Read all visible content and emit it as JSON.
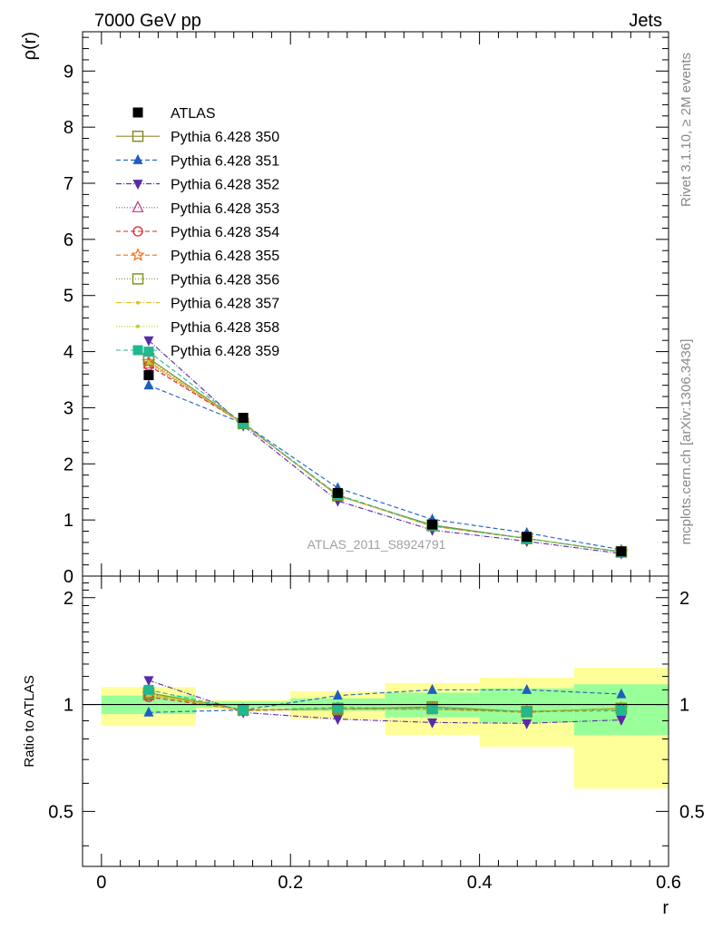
{
  "header": {
    "left": "7000 GeV pp",
    "right": "Jets"
  },
  "side_labels": {
    "rivet": "Rivet 3.1.10, ≥ 2M events",
    "mcplots": "mcplots.cern.ch [arXiv:1306.3436]"
  },
  "watermark": "ATLAS_2011_S8924791",
  "chart_data": [
    {
      "type": "line",
      "panel": "main",
      "ylabel": "ρ(r)",
      "xlabel": "r",
      "xlim": [
        -0.02,
        0.6
      ],
      "ylim": [
        0,
        9.7
      ],
      "x": [
        0.05,
        0.15,
        0.25,
        0.35,
        0.45,
        0.55
      ],
      "x_ticks": [
        "0",
        "0.2",
        "0.4",
        "0.6"
      ],
      "x_tick_values": [
        0,
        0.2,
        0.4,
        0.6
      ],
      "y_ticks": [
        "0",
        "1",
        "2",
        "3",
        "4",
        "5",
        "6",
        "7",
        "8",
        "9"
      ],
      "y_tick_values": [
        0,
        1,
        2,
        3,
        4,
        5,
        6,
        7,
        8,
        9
      ],
      "legend_position": "top-left",
      "series": [
        {
          "name": "ATLAS",
          "values": [
            3.58,
            2.82,
            1.48,
            0.92,
            0.7,
            0.44
          ],
          "color": "#000000",
          "marker": "filled-square",
          "dash": "none"
        },
        {
          "name": "Pythia 6.428 350",
          "values": [
            3.88,
            2.72,
            1.43,
            0.91,
            0.67,
            0.43
          ],
          "color": "#8b8b2b",
          "marker": "open-square",
          "dash": "solid"
        },
        {
          "name": "Pythia 6.428 351",
          "values": [
            3.4,
            2.72,
            1.57,
            1.01,
            0.77,
            0.47
          ],
          "color": "#1d5fc0",
          "marker": "filled-triangle-up",
          "dash": "5,3"
        },
        {
          "name": "Pythia 6.428 352",
          "values": [
            4.2,
            2.68,
            1.34,
            0.82,
            0.62,
            0.4
          ],
          "color": "#5a2aa6",
          "marker": "filled-triangle-down",
          "dash": "6,2,1,2"
        },
        {
          "name": "Pythia 6.428 353",
          "values": [
            3.78,
            2.72,
            1.44,
            0.9,
            0.67,
            0.43
          ],
          "color": "#c03a8a",
          "marker": "open-triangle-up",
          "dash": "1,2"
        },
        {
          "name": "Pythia 6.428 354",
          "values": [
            3.75,
            2.72,
            1.44,
            0.89,
            0.67,
            0.43
          ],
          "color": "#e0202a",
          "marker": "open-circle",
          "dash": "5,3"
        },
        {
          "name": "Pythia 6.428 355",
          "values": [
            3.82,
            2.71,
            1.44,
            0.89,
            0.67,
            0.43
          ],
          "color": "#f07010",
          "marker": "open-star",
          "dash": "5,3"
        },
        {
          "name": "Pythia 6.428 356",
          "values": [
            3.85,
            2.72,
            1.44,
            0.9,
            0.67,
            0.43
          ],
          "color": "#7a9a20",
          "marker": "open-square",
          "dash": "1,2"
        },
        {
          "name": "Pythia 6.428 357",
          "values": [
            3.82,
            2.72,
            1.44,
            0.89,
            0.67,
            0.43
          ],
          "color": "#e0c020",
          "marker": "small-dot",
          "dash": "6,2,1,2"
        },
        {
          "name": "Pythia 6.428 358",
          "values": [
            3.8,
            2.72,
            1.44,
            0.89,
            0.67,
            0.43
          ],
          "color": "#b8d020",
          "marker": "small-dot",
          "dash": "1,2"
        },
        {
          "name": "Pythia 6.428 359",
          "values": [
            4.0,
            2.72,
            1.45,
            0.9,
            0.67,
            0.43
          ],
          "color": "#20b890",
          "marker": "filled-square",
          "dash": "5,3"
        }
      ]
    },
    {
      "type": "line",
      "panel": "ratio",
      "ylabel": "Ratio to ATLAS",
      "xlabel": "r",
      "xlim": [
        -0.02,
        0.6
      ],
      "ylim": [
        0.35,
        2.3
      ],
      "y_ticks": [
        "0.5",
        "1",
        "2"
      ],
      "y_tick_values": [
        0.5,
        1,
        2
      ],
      "x": [
        0.05,
        0.15,
        0.25,
        0.35,
        0.45,
        0.55
      ],
      "reference_line": 1,
      "bands": [
        {
          "x0": 0.0,
          "x1": 0.1,
          "yellow": [
            0.87,
            1.12
          ],
          "green": [
            0.94,
            1.06
          ]
        },
        {
          "x0": 0.1,
          "x1": 0.2,
          "yellow": [
            0.97,
            1.03
          ],
          "green": [
            0.98,
            1.02
          ]
        },
        {
          "x0": 0.2,
          "x1": 0.3,
          "yellow": [
            0.91,
            1.09
          ],
          "green": [
            0.96,
            1.04
          ]
        },
        {
          "x0": 0.3,
          "x1": 0.4,
          "yellow": [
            0.82,
            1.15
          ],
          "green": [
            0.92,
            1.08
          ]
        },
        {
          "x0": 0.4,
          "x1": 0.5,
          "yellow": [
            0.76,
            1.19
          ],
          "green": [
            0.89,
            1.11
          ]
        },
        {
          "x0": 0.5,
          "x1": 0.6,
          "yellow": [
            0.58,
            1.27
          ],
          "green": [
            0.82,
            1.14
          ]
        }
      ],
      "series": [
        {
          "name": "Pythia 6.428 350",
          "values": [
            1.08,
            0.965,
            0.97,
            0.985,
            0.955,
            0.975
          ],
          "color": "#8b8b2b",
          "marker": "open-square",
          "dash": "solid"
        },
        {
          "name": "Pythia 6.428 351",
          "values": [
            0.95,
            0.965,
            1.06,
            1.1,
            1.1,
            1.07
          ],
          "color": "#1d5fc0",
          "marker": "filled-triangle-up",
          "dash": "5,3"
        },
        {
          "name": "Pythia 6.428 352",
          "values": [
            1.17,
            0.95,
            0.91,
            0.89,
            0.885,
            0.905
          ],
          "color": "#5a2aa6",
          "marker": "filled-triangle-down",
          "dash": "6,2,1,2"
        },
        {
          "name": "Pythia 6.428 353",
          "values": [
            1.06,
            0.965,
            0.975,
            0.975,
            0.955,
            0.97
          ],
          "color": "#c03a8a",
          "marker": "open-triangle-up",
          "dash": "1,2"
        },
        {
          "name": "Pythia 6.428 354",
          "values": [
            1.05,
            0.965,
            0.97,
            0.97,
            0.955,
            0.97
          ],
          "color": "#e0202a",
          "marker": "open-circle",
          "dash": "5,3"
        },
        {
          "name": "Pythia 6.428 355",
          "values": [
            1.07,
            0.96,
            0.97,
            0.97,
            0.95,
            0.975
          ],
          "color": "#f07010",
          "marker": "open-star",
          "dash": "5,3"
        },
        {
          "name": "Pythia 6.428 356",
          "values": [
            1.075,
            0.965,
            0.975,
            0.975,
            0.955,
            0.975
          ],
          "color": "#7a9a20",
          "marker": "open-square",
          "dash": "1,2"
        },
        {
          "name": "Pythia 6.428 357",
          "values": [
            1.07,
            0.965,
            0.97,
            0.97,
            0.955,
            0.97
          ],
          "color": "#e0c020",
          "marker": "small-dot",
          "dash": "6,2,1,2"
        },
        {
          "name": "Pythia 6.428 358",
          "values": [
            1.06,
            0.965,
            0.97,
            0.97,
            0.955,
            0.97
          ],
          "color": "#b8d020",
          "marker": "small-dot",
          "dash": "1,2"
        },
        {
          "name": "Pythia 6.428 359",
          "values": [
            1.1,
            0.965,
            0.98,
            0.975,
            0.955,
            0.96
          ],
          "color": "#20b890",
          "marker": "filled-square",
          "dash": "5,3"
        }
      ]
    }
  ]
}
